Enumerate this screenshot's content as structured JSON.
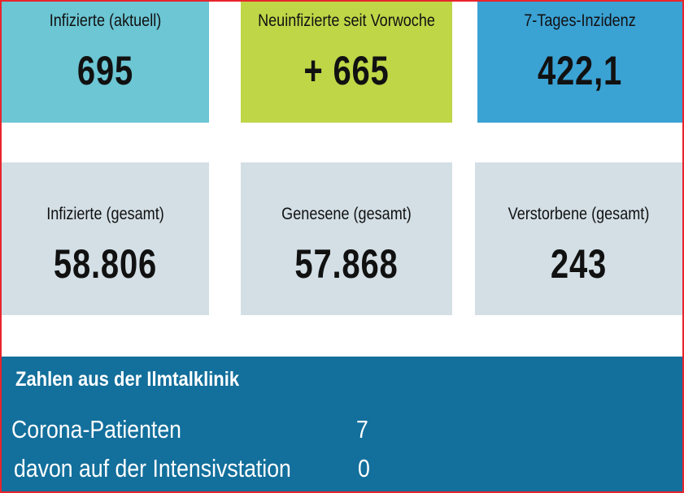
{
  "top_cards": [
    {
      "label": "Infizierte (aktuell)",
      "value": "695",
      "color": "#6cc6d4"
    },
    {
      "label": "Neuinfizierte seit Vorwoche",
      "value": "+ 665",
      "color": "#bfd647"
    },
    {
      "label": "7-Tages-Inzidenz",
      "value": "422,1",
      "color": "#3ba2d4"
    }
  ],
  "bottom_cards": [
    {
      "label": "Infizierte (gesamt)",
      "value": "58.806",
      "color": "#d3dfe5"
    },
    {
      "label": "Genesene (gesamt)",
      "value": "57.868",
      "color": "#d3dfe5"
    },
    {
      "label": "Verstorbene (gesamt)",
      "value": "243",
      "color": "#d3dfe5"
    }
  ],
  "clinic": {
    "title": "Zahlen aus der Ilmtalklinik",
    "rows": [
      {
        "label": "Corona-Patienten",
        "value": "7"
      },
      {
        "label": "davon auf der Intensivstation",
        "value": "0"
      }
    ],
    "color": "#136f9b"
  },
  "frame_color": "#e8242c"
}
